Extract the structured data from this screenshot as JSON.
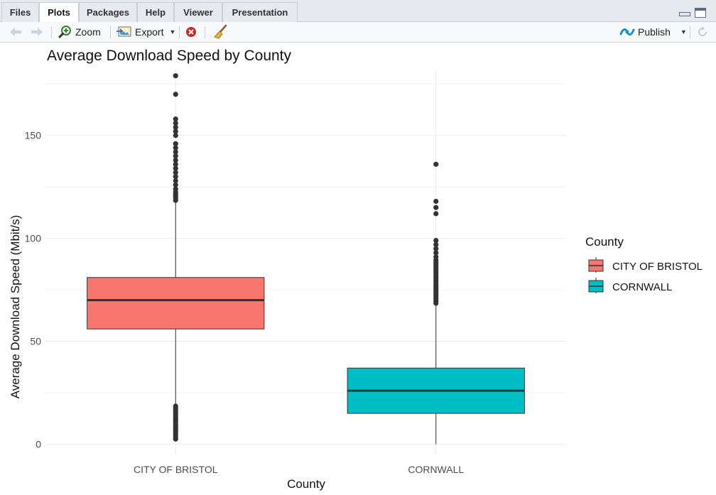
{
  "tabs": [
    {
      "label": "Files",
      "active": false
    },
    {
      "label": "Plots",
      "active": true
    },
    {
      "label": "Packages",
      "active": false
    },
    {
      "label": "Help",
      "active": false
    },
    {
      "label": "Viewer",
      "active": false
    },
    {
      "label": "Presentation",
      "active": false
    }
  ],
  "toolbar": {
    "back_icon": "back-arrow-icon",
    "forward_icon": "forward-arrow-icon",
    "zoom_label": "Zoom",
    "export_label": "Export",
    "remove_icon": "remove-plot-icon",
    "clear_icon": "broom-icon",
    "publish_label": "Publish",
    "refresh_icon": "refresh-icon"
  },
  "colors": {
    "bristol": "#F8766D",
    "cornwall": "#00BFC4",
    "box_stroke": "#333333",
    "grid": "#EBEBEB"
  },
  "chart_data": {
    "type": "boxplot",
    "title": "Average Download Speed by County",
    "xlabel": "County",
    "ylabel": "Average Download Speed (Mbit/s)",
    "ylim": [
      -5,
      182
    ],
    "yticks": [
      0,
      50,
      100,
      150
    ],
    "grid": true,
    "legend": {
      "title": "County",
      "position": "right",
      "items": [
        "CITY OF BRISTOL",
        "CORNWALL"
      ]
    },
    "categories": [
      "CITY OF BRISTOL",
      "CORNWALL"
    ],
    "boxes": [
      {
        "name": "CITY OF BRISTOL",
        "min": 19,
        "q1": 56,
        "median": 70,
        "q3": 81,
        "max": 118,
        "outliers_high": [
          118.5,
          119.5,
          120.5,
          121.5,
          122.5,
          124,
          126,
          128,
          130,
          132,
          134,
          136,
          138,
          140,
          142,
          144,
          146,
          150,
          152,
          154,
          156,
          158,
          170,
          179
        ],
        "outliers_low": [
          2.5,
          3.5,
          4.5,
          5.5,
          6.5,
          7.5,
          8.5,
          9.5,
          10.5,
          11.5,
          12.5,
          13.5,
          14.5,
          15.5,
          16.5,
          17.5,
          18.5
        ]
      },
      {
        "name": "CORNWALL",
        "min": 0,
        "q1": 15,
        "median": 26,
        "q3": 37,
        "max": 68,
        "outliers_high": [
          68.5,
          69.5,
          70.5,
          71.5,
          72.5,
          73.5,
          74.5,
          75.5,
          76.5,
          77.5,
          78.5,
          79.5,
          80.5,
          81.5,
          82.5,
          83.5,
          84.5,
          85.5,
          86.5,
          87.5,
          88.5,
          89.5,
          91,
          93,
          95,
          97,
          99,
          112,
          115,
          118,
          136
        ],
        "outliers_low": []
      }
    ]
  }
}
